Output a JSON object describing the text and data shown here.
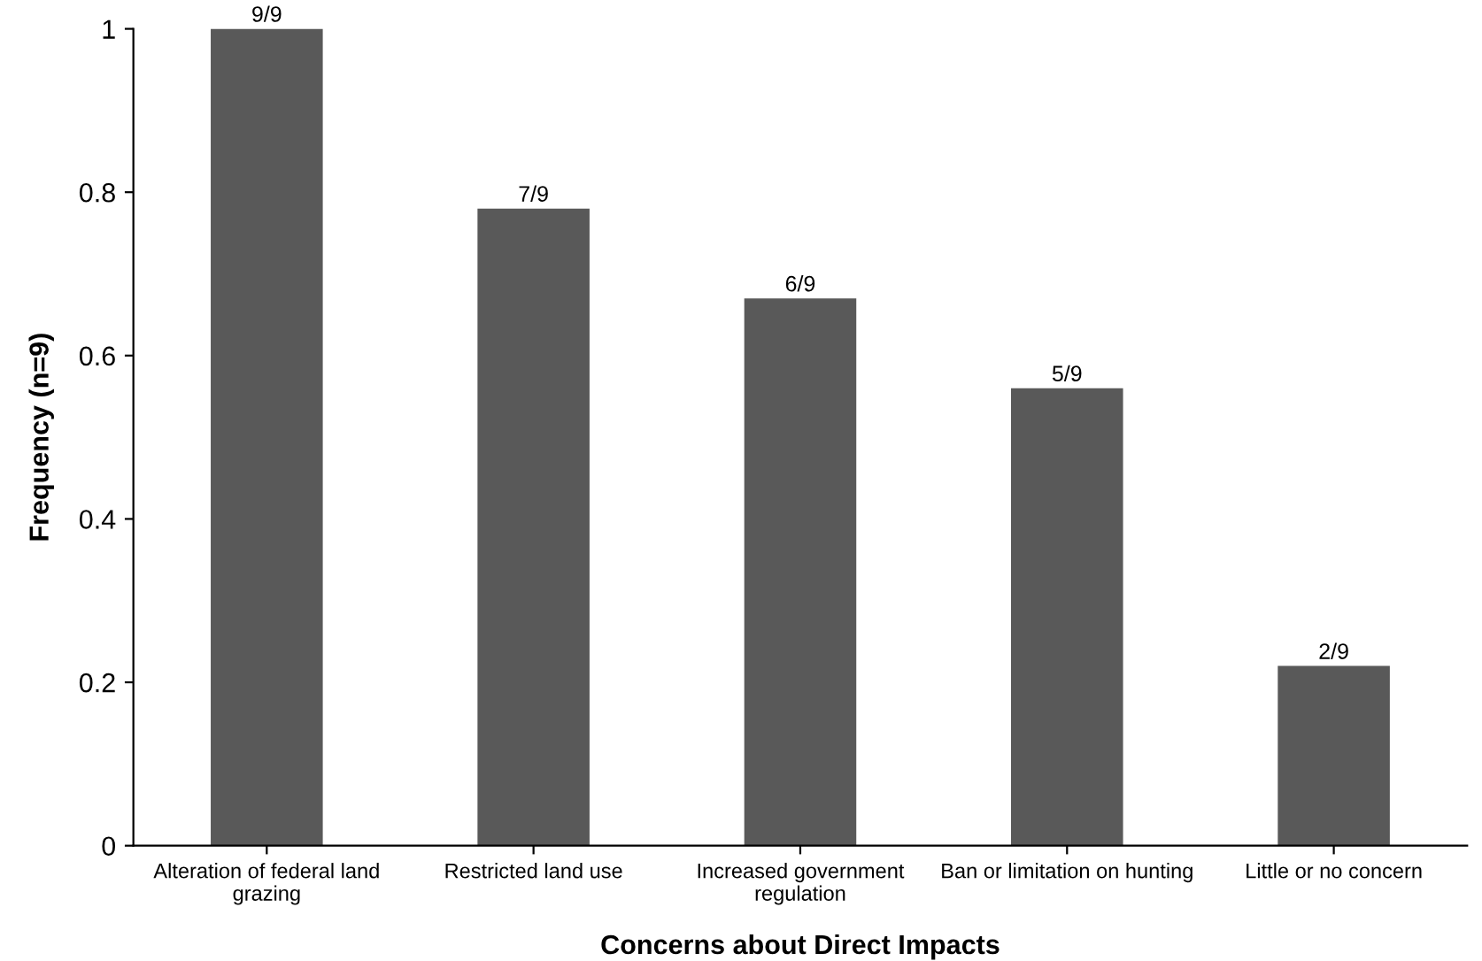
{
  "chart_data": {
    "type": "bar",
    "xlabel": "Concerns about Direct Impacts",
    "ylabel": "Frequency (n=9)",
    "categories": [
      "Alteration of federal land grazing",
      "Restricted land use",
      "Increased government regulation",
      "Ban or limitation on hunting",
      "Little or no concern"
    ],
    "values": [
      1.0,
      0.78,
      0.67,
      0.56,
      0.22
    ],
    "value_labels": [
      "9/9",
      "7/9",
      "6/9",
      "5/9",
      "2/9"
    ],
    "color": "#595959",
    "ylim": [
      0,
      1
    ],
    "yticks": [
      0,
      0.2,
      0.4,
      0.6,
      0.8,
      1
    ],
    "grid": false,
    "legend": false
  }
}
